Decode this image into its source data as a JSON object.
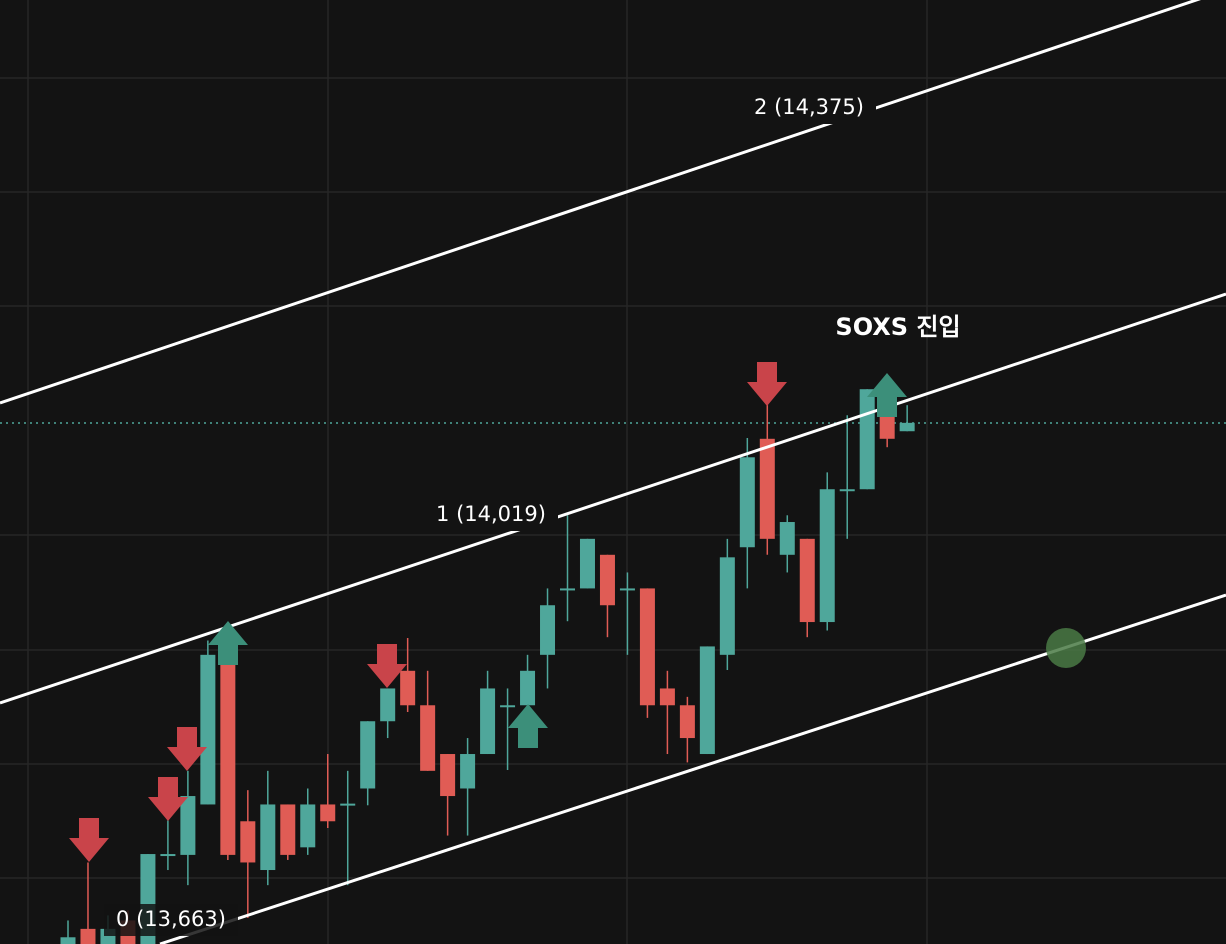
{
  "chart_data": {
    "type": "candlestick",
    "categories": [
      null,
      null,
      null,
      null,
      null,
      null,
      null,
      null,
      null,
      null,
      null,
      null,
      null,
      null,
      null,
      null,
      null,
      null,
      null,
      null,
      null,
      null,
      null,
      null,
      null,
      null,
      null,
      null,
      null,
      null,
      null,
      null,
      null,
      null,
      null,
      null,
      null,
      null,
      null,
      null,
      null,
      null,
      null
    ],
    "open": [
      13509,
      13527,
      13509,
      13537,
      13509,
      13616,
      13615,
      13675,
      13841,
      13655,
      13597,
      13675,
      13624,
      13675,
      13676,
      13694,
      13774,
      13834,
      13793,
      13735,
      13694,
      13735,
      13793,
      13793,
      13853,
      13932,
      13932,
      13972,
      13932,
      13932,
      13813,
      13793,
      13735,
      13853,
      13981,
      14110,
      13972,
      13991,
      13892,
      14050,
      14050,
      14150,
      14119
    ],
    "high": [
      13537,
      13606,
      13543,
      13549,
      13616,
      13656,
      13715,
      13870,
      13882,
      13692,
      13715,
      13675,
      13694,
      13735,
      13715,
      13774,
      13813,
      13873,
      13834,
      13735,
      13754,
      13834,
      13813,
      13853,
      13932,
      14019,
      13991,
      13972,
      13951,
      13932,
      13834,
      13803,
      13863,
      13991,
      14111,
      14150,
      14019,
      13991,
      14070,
      14138,
      14169,
      14150,
      14150
    ],
    "low": [
      13509,
      13509,
      13509,
      13509,
      13509,
      13597,
      13579,
      13675,
      13609,
      13540,
      13579,
      13609,
      13615,
      13647,
      13579,
      13674,
      13754,
      13785,
      13715,
      13638,
      13638,
      13735,
      13716,
      13793,
      13813,
      13893,
      13932,
      13874,
      13853,
      13778,
      13735,
      13725,
      13735,
      13835,
      13932,
      13972,
      13951,
      13874,
      13882,
      13991,
      14050,
      14100,
      14119
    ],
    "close": [
      13517,
      13509,
      13527,
      13509,
      13616,
      13616,
      13685,
      13853,
      13615,
      13606,
      13675,
      13615,
      13675,
      13655,
      13676,
      13774,
      13813,
      13793,
      13715,
      13685,
      13735,
      13813,
      13793,
      13834,
      13912,
      13932,
      13991,
      13912,
      13932,
      13793,
      13793,
      13754,
      13863,
      13969,
      14088,
      13991,
      14011,
      13892,
      14050,
      14050,
      14169,
      14110,
      14129
    ],
    "up_color": "#4fa79b",
    "down_color": "#e05c55",
    "ylim": [
      13509,
      14632
    ],
    "channel_labels": [
      "2 (14,375)",
      "1 (14,019)",
      "0 (13,663)"
    ],
    "annotation": "SOXS 진입"
  }
}
